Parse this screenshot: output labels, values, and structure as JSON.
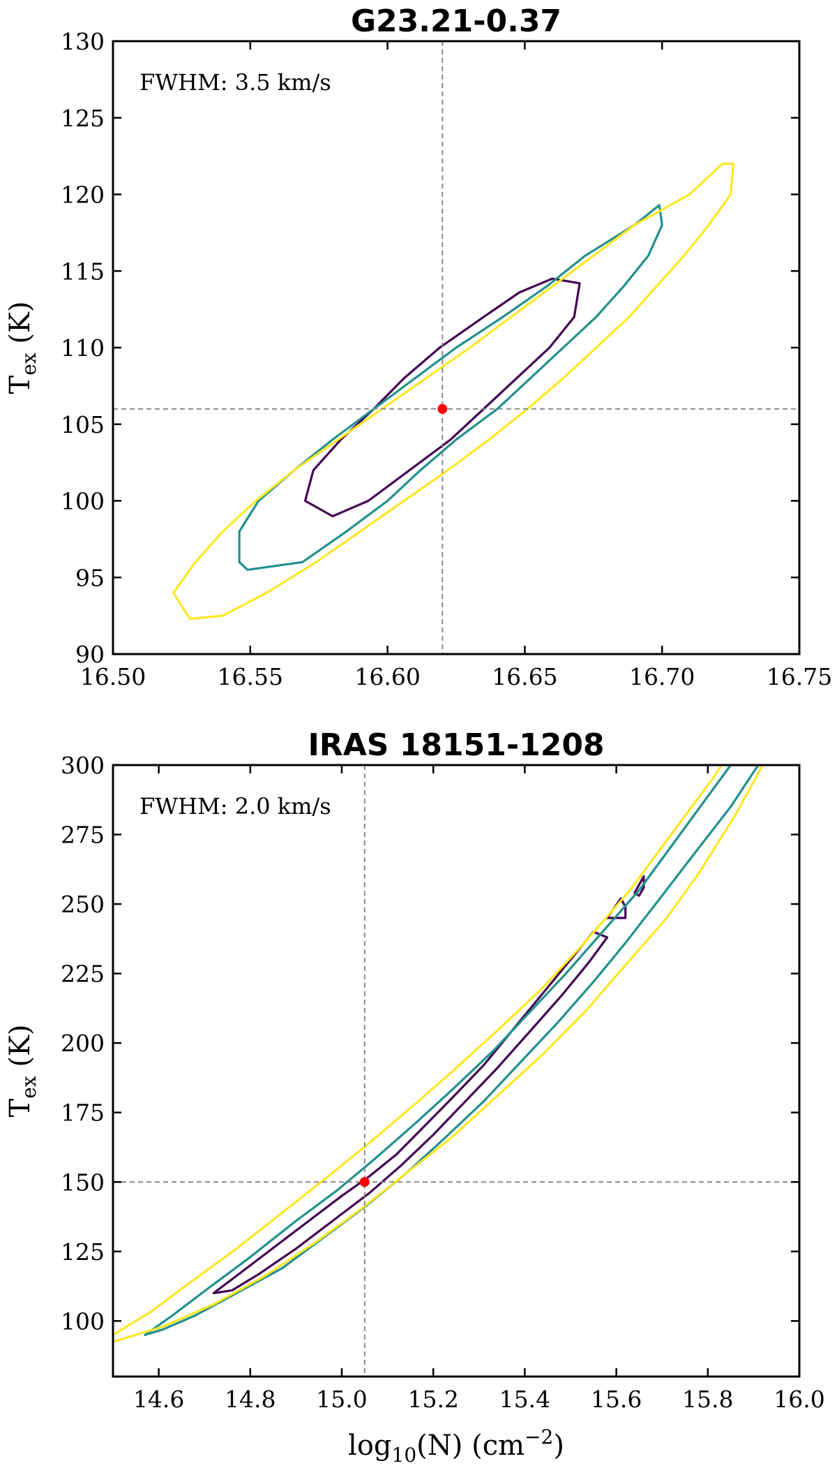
{
  "chart_data": [
    {
      "type": "contour",
      "title": "G23.21-0.37",
      "annotation": "FWHM: 3.5 km/s",
      "xlabel": "",
      "ylabel_main": "T",
      "ylabel_sub": "ex",
      "ylabel_unit": " (K)",
      "xlim": [
        16.5,
        16.75
      ],
      "ylim": [
        90,
        130
      ],
      "xticks": [
        "16.50",
        "16.55",
        "16.60",
        "16.65",
        "16.70",
        "16.75"
      ],
      "yticks": [
        "90",
        "95",
        "100",
        "105",
        "110",
        "115",
        "120",
        "125",
        "130"
      ],
      "best_fit": {
        "x": 16.62,
        "y": 106
      },
      "contours": [
        {
          "level": "inner",
          "color": "#440154",
          "points": [
            [
              16.57,
              100
            ],
            [
              16.573,
              102
            ],
            [
              16.583,
              104
            ],
            [
              16.595,
              106
            ],
            [
              16.606,
              108
            ],
            [
              16.619,
              110
            ],
            [
              16.635,
              112
            ],
            [
              16.648,
              113.6
            ],
            [
              16.66,
              114.5
            ],
            [
              16.67,
              114.2
            ],
            [
              16.668,
              112
            ],
            [
              16.659,
              110
            ],
            [
              16.647,
              108
            ],
            [
              16.635,
              106
            ],
            [
              16.623,
              104
            ],
            [
              16.608,
              102
            ],
            [
              16.593,
              100
            ],
            [
              16.58,
              99
            ]
          ]
        },
        {
          "level": "middle",
          "color": "#21908d",
          "points": [
            [
              16.546,
              96
            ],
            [
              16.546,
              98
            ],
            [
              16.553,
              100
            ],
            [
              16.566,
              102
            ],
            [
              16.58,
              104
            ],
            [
              16.595,
              106
            ],
            [
              16.61,
              108
            ],
            [
              16.625,
              110
            ],
            [
              16.642,
              112
            ],
            [
              16.658,
              114
            ],
            [
              16.672,
              116
            ],
            [
              16.69,
              118
            ],
            [
              16.699,
              119.3
            ],
            [
              16.7,
              118
            ],
            [
              16.695,
              116
            ],
            [
              16.686,
              114
            ],
            [
              16.676,
              112
            ],
            [
              16.664,
              110
            ],
            [
              16.652,
              108
            ],
            [
              16.64,
              106
            ],
            [
              16.625,
              104
            ],
            [
              16.612,
              102
            ],
            [
              16.6,
              100
            ],
            [
              16.585,
              98
            ],
            [
              16.569,
              96
            ],
            [
              16.549,
              95.5
            ]
          ]
        },
        {
          "level": "outer",
          "color": "#fde725",
          "points": [
            [
              16.522,
              94
            ],
            [
              16.53,
              96
            ],
            [
              16.54,
              98
            ],
            [
              16.552,
              100
            ],
            [
              16.566,
              102
            ],
            [
              16.582,
              104
            ],
            [
              16.598,
              106
            ],
            [
              16.614,
              108
            ],
            [
              16.63,
              110
            ],
            [
              16.645,
              112
            ],
            [
              16.66,
              114
            ],
            [
              16.675,
              116
            ],
            [
              16.69,
              118
            ],
            [
              16.71,
              120
            ],
            [
              16.722,
              122
            ],
            [
              16.726,
              122
            ],
            [
              16.725,
              120
            ],
            [
              16.717,
              118
            ],
            [
              16.708,
              116
            ],
            [
              16.698,
              114
            ],
            [
              16.688,
              112
            ],
            [
              16.676,
              110
            ],
            [
              16.664,
              108
            ],
            [
              16.651,
              106
            ],
            [
              16.637,
              104
            ],
            [
              16.622,
              102
            ],
            [
              16.606,
              100
            ],
            [
              16.59,
              98
            ],
            [
              16.574,
              96
            ],
            [
              16.556,
              94
            ],
            [
              16.54,
              92.5
            ],
            [
              16.528,
              92.3
            ]
          ]
        }
      ]
    },
    {
      "type": "contour",
      "title": "IRAS 18151-1208",
      "annotation": "FWHM: 2.0 km/s",
      "xlabel_main": "log",
      "xlabel_sub": "10",
      "xlabel_rest": "(N) (cm",
      "xlabel_sup": "−2",
      "xlabel_close": ")",
      "ylabel_main": "T",
      "ylabel_sub": "ex",
      "ylabel_unit": " (K)",
      "xlim": [
        14.5,
        16.0
      ],
      "ylim": [
        80,
        300
      ],
      "xticks": [
        "14.6",
        "14.8",
        "15.0",
        "15.2",
        "15.4",
        "15.6",
        "15.8",
        "16.0"
      ],
      "yticks": [
        "100",
        "125",
        "150",
        "175",
        "200",
        "225",
        "250",
        "275",
        "300"
      ],
      "best_fit": {
        "x": 15.05,
        "y": 150
      },
      "contours": [
        {
          "level": "inner-main",
          "color": "#440154",
          "points": [
            [
              14.72,
              110
            ],
            [
              14.76,
              115
            ],
            [
              14.84,
              125
            ],
            [
              14.92,
              135
            ],
            [
              15.0,
              145
            ],
            [
              15.06,
              152
            ],
            [
              15.12,
              160
            ],
            [
              15.18,
              170
            ],
            [
              15.24,
              180
            ],
            [
              15.31,
              192
            ],
            [
              15.37,
              204
            ],
            [
              15.43,
              216
            ],
            [
              15.49,
              228
            ],
            [
              15.55,
              240
            ],
            [
              15.58,
              238
            ],
            [
              15.54,
              229
            ],
            [
              15.48,
              217
            ],
            [
              15.41,
              204
            ],
            [
              15.34,
              191
            ],
            [
              15.27,
              179
            ],
            [
              15.2,
              167
            ],
            [
              15.13,
              156
            ],
            [
              15.06,
              146
            ],
            [
              14.98,
              136
            ],
            [
              14.9,
              126
            ],
            [
              14.82,
              117
            ],
            [
              14.76,
              111
            ]
          ]
        },
        {
          "level": "inner-island-1",
          "color": "#440154",
          "points": [
            [
              15.58,
              245
            ],
            [
              15.61,
              252
            ],
            [
              15.62,
              249
            ],
            [
              15.62,
              245
            ]
          ]
        },
        {
          "level": "inner-island-2",
          "color": "#440154",
          "points": [
            [
              15.64,
              254
            ],
            [
              15.66,
              260
            ],
            [
              15.66,
              256
            ],
            [
              15.65,
              253
            ]
          ]
        },
        {
          "level": "middle",
          "color": "#21908d",
          "points": [
            [
              14.57,
              95
            ],
            [
              14.63,
              102
            ],
            [
              14.71,
              112
            ],
            [
              14.8,
              123
            ],
            [
              14.9,
              136
            ],
            [
              14.99,
              147
            ],
            [
              15.07,
              158
            ],
            [
              15.16,
              171
            ],
            [
              15.24,
              183
            ],
            [
              15.33,
              197
            ],
            [
              15.41,
              211
            ],
            [
              15.49,
              225
            ],
            [
              15.57,
              240
            ],
            [
              15.65,
              255
            ],
            [
              15.73,
              273
            ],
            [
              15.81,
              291
            ],
            [
              15.85,
              300
            ],
            [
              15.91,
              300
            ],
            [
              15.85,
              285
            ],
            [
              15.77,
              268
            ],
            [
              15.7,
              253
            ],
            [
              15.62,
              236
            ],
            [
              15.55,
              222
            ],
            [
              15.47,
              207
            ],
            [
              15.39,
              193
            ],
            [
              15.31,
              179
            ],
            [
              15.22,
              165
            ],
            [
              15.14,
              153
            ],
            [
              15.05,
              141
            ],
            [
              14.96,
              130
            ],
            [
              14.87,
              119
            ],
            [
              14.77,
              110
            ],
            [
              14.68,
              102
            ],
            [
              14.61,
              97
            ]
          ]
        },
        {
          "level": "outer",
          "color": "#fde725",
          "points": [
            [
              14.5,
              95
            ],
            [
              14.58,
              103
            ],
            [
              14.67,
              114
            ],
            [
              14.77,
              126
            ],
            [
              14.87,
              139
            ],
            [
              14.97,
              152
            ],
            [
              15.06,
              164
            ],
            [
              15.16,
              178
            ],
            [
              15.25,
              191
            ],
            [
              15.35,
              206
            ],
            [
              15.44,
              220
            ],
            [
              15.53,
              236
            ],
            [
              15.63,
              255
            ],
            [
              15.72,
              275
            ],
            [
              15.81,
              295
            ],
            [
              15.83,
              300
            ],
            [
              15.92,
              300
            ],
            [
              15.86,
              282
            ],
            [
              15.78,
              261
            ],
            [
              15.71,
              245
            ],
            [
              15.62,
              228
            ],
            [
              15.53,
              211
            ],
            [
              15.44,
              196
            ],
            [
              15.34,
              181
            ],
            [
              15.24,
              166
            ],
            [
              15.14,
              153
            ],
            [
              15.04,
              140
            ],
            [
              14.94,
              128
            ],
            [
              14.83,
              116
            ],
            [
              14.72,
              106
            ],
            [
              14.61,
              98
            ],
            [
              14.51,
              93
            ],
            [
              14.5,
              92.5
            ]
          ]
        }
      ]
    }
  ]
}
